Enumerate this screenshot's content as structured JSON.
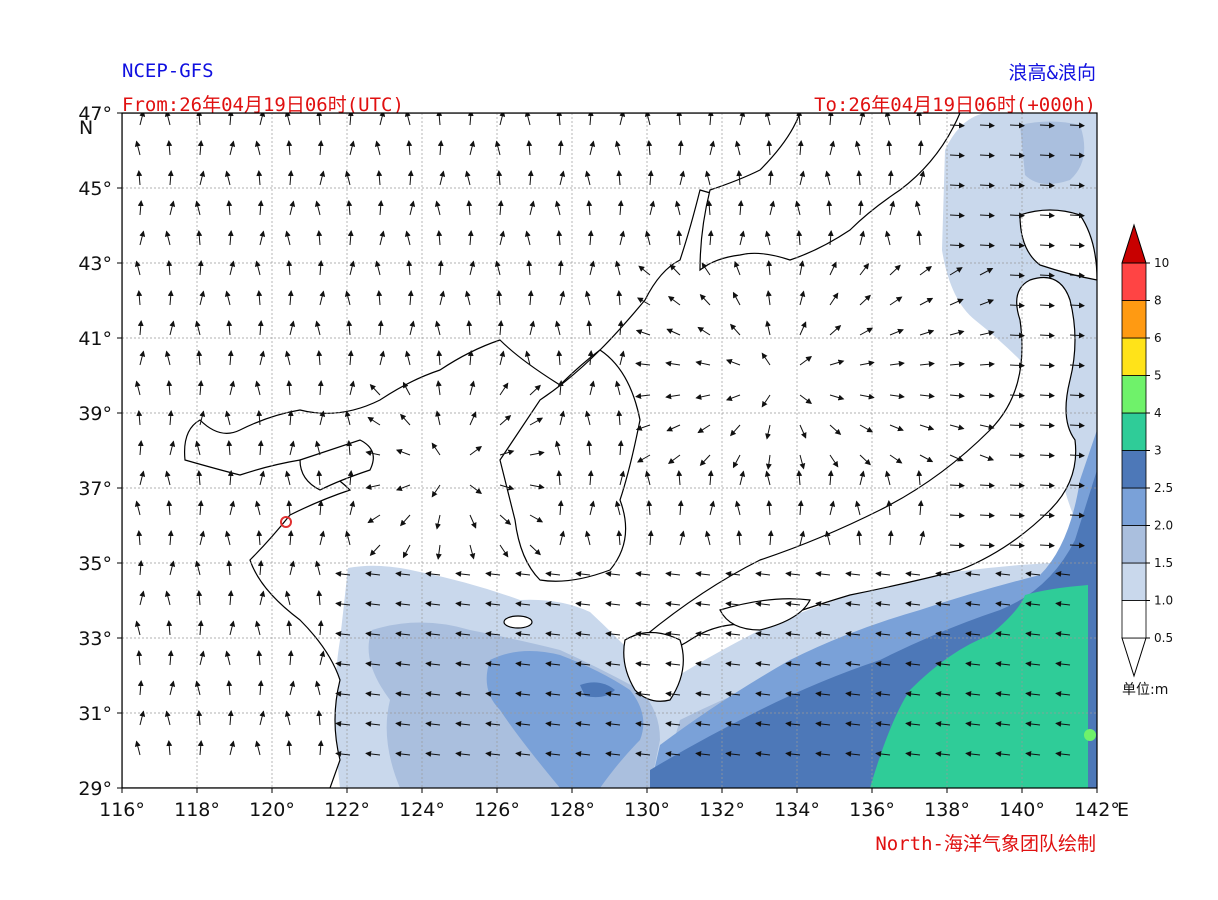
{
  "header": {
    "model": "NCEP-GFS",
    "product": "浪高&浪向",
    "from": "From:26年04月19日06时(UTC)",
    "to": "To:26年04月19日06时(+000h)"
  },
  "footer": {
    "credit": "North-海洋气象团队绘制"
  },
  "axes": {
    "lon_range": [
      116,
      142
    ],
    "lat_range": [
      29,
      47
    ],
    "lon_ticks": [
      "116°",
      "118°",
      "120°",
      "122°",
      "124°",
      "126°",
      "128°",
      "130°",
      "132°",
      "134°",
      "136°",
      "138°",
      "140°",
      "142°"
    ],
    "lat_ticks": [
      "47°",
      "45°",
      "43°",
      "41°",
      "39°",
      "37°",
      "35°",
      "33°",
      "31°",
      "29°"
    ],
    "east_label": "E",
    "north_label": "N"
  },
  "colorbar": {
    "unit_label": "单位:m",
    "levels": [
      "0.5",
      "1.0",
      "1.5",
      "2.0",
      "2.5",
      "3",
      "4",
      "5",
      "6",
      "8",
      "10"
    ],
    "colors": [
      "#ffffff",
      "#c9d8ec",
      "#aabfde",
      "#7aa1d8",
      "#4d78b8",
      "#2fcc98",
      "#6ff26a",
      "#ffe319",
      "#ff9a12",
      "#ff4444",
      "#c80000"
    ]
  },
  "marker": {
    "color": "#e03030"
  }
}
